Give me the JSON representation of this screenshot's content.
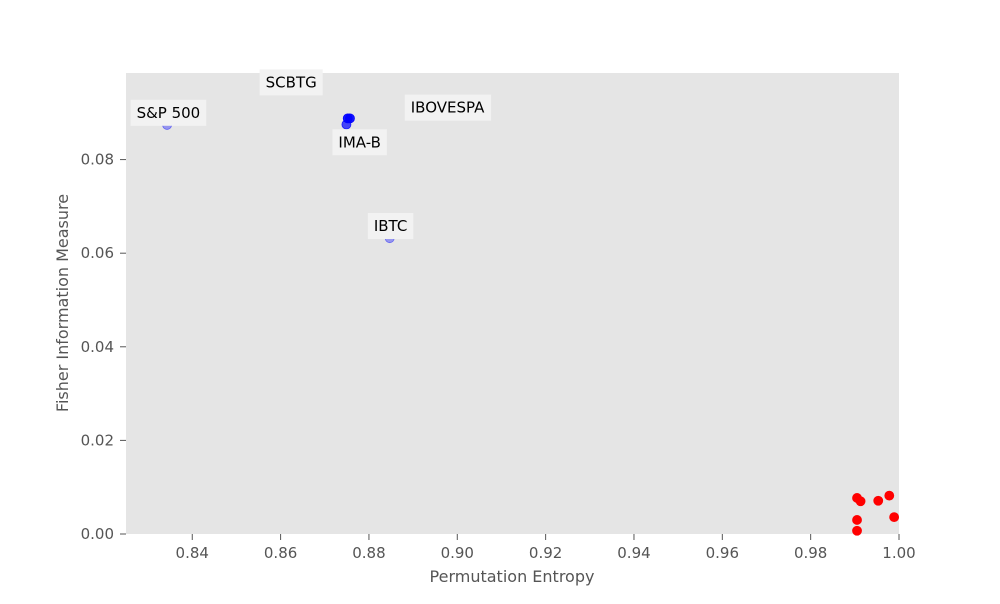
{
  "chart_data": {
    "type": "scatter",
    "title": "",
    "xlabel": "Permutation Entropy",
    "ylabel": "Fisher Information Measure",
    "xlim": [
      0.825,
      1.0
    ],
    "ylim": [
      0.0,
      0.0985
    ],
    "x_ticks": [
      "0.84",
      "0.86",
      "0.88",
      "0.90",
      "0.92",
      "0.94",
      "0.96",
      "0.98",
      "1.00"
    ],
    "y_ticks": [
      "0.00",
      "0.02",
      "0.04",
      "0.06",
      "0.08"
    ],
    "grid": false,
    "background": "#e5e5e5",
    "series": [
      {
        "color": "#0000ff",
        "points": [
          {
            "x": 0.8343,
            "y": 0.0874,
            "alpha": 0.35
          },
          {
            "x": 0.8752,
            "y": 0.0888,
            "alpha": 0.9
          },
          {
            "x": 0.8757,
            "y": 0.0888,
            "alpha": 0.9
          },
          {
            "x": 0.8749,
            "y": 0.0875,
            "alpha": 0.7
          },
          {
            "x": 0.8847,
            "y": 0.0632,
            "alpha": 0.35
          }
        ]
      },
      {
        "color": "#ff0000",
        "points": [
          {
            "x": 0.9905,
            "y": 0.0077,
            "alpha": 1
          },
          {
            "x": 0.9913,
            "y": 0.007,
            "alpha": 1
          },
          {
            "x": 0.9953,
            "y": 0.0071,
            "alpha": 1
          },
          {
            "x": 0.9978,
            "y": 0.0082,
            "alpha": 1
          },
          {
            "x": 0.9989,
            "y": 0.0036,
            "alpha": 1
          },
          {
            "x": 0.9905,
            "y": 0.003,
            "alpha": 1
          },
          {
            "x": 0.9905,
            "y": 0.0007,
            "alpha": 1
          }
        ]
      }
    ],
    "annotations": [
      {
        "text": "SCBTG",
        "x": 0.8624,
        "y": 0.0965
      },
      {
        "text": "S&P 500",
        "x": 0.8346,
        "y": 0.09
      },
      {
        "text": "IBOVESPA",
        "x": 0.8978,
        "y": 0.0911
      },
      {
        "text": "IMA-B",
        "x": 0.8779,
        "y": 0.0837
      },
      {
        "text": "IBTC",
        "x": 0.8849,
        "y": 0.0658
      }
    ]
  }
}
